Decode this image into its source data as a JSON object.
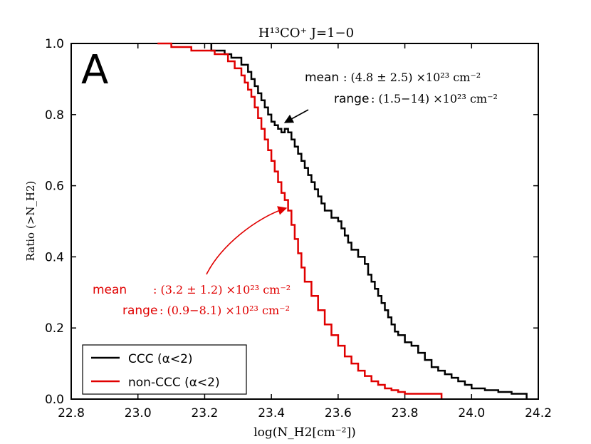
{
  "chart_data": {
    "type": "line",
    "panel_letter": "A",
    "title": "H¹³CO⁺ J=1−0",
    "xlabel": "log(N_H2[cm⁻²])",
    "ylabel": "Ratio (>N_H2)",
    "xlim": [
      22.8,
      24.2
    ],
    "ylim": [
      0.0,
      1.0
    ],
    "xticks": [
      22.8,
      23.0,
      23.2,
      23.4,
      23.6,
      23.8,
      24.0,
      24.2
    ],
    "yticks": [
      0.0,
      0.2,
      0.4,
      0.6,
      0.8,
      1.0
    ],
    "xtick_labels": [
      "22.8",
      "23.0",
      "23.2",
      "23.4",
      "23.6",
      "23.8",
      "24.0",
      "24.2"
    ],
    "ytick_labels": [
      "0.0",
      "0.2",
      "0.4",
      "0.6",
      "0.8",
      "1.0"
    ],
    "grid": false,
    "legend_position": "bottom-left",
    "series": [
      {
        "name": "CCC (α<2)",
        "color": "#000000",
        "x": [
          23.22,
          23.22,
          23.26,
          23.28,
          23.31,
          23.33,
          23.34,
          23.35,
          23.36,
          23.37,
          23.38,
          23.39,
          23.4,
          23.41,
          23.42,
          23.43,
          23.44,
          23.45,
          23.46,
          23.47,
          23.48,
          23.49,
          23.5,
          23.51,
          23.52,
          23.53,
          23.54,
          23.55,
          23.56,
          23.58,
          23.6,
          23.61,
          23.62,
          23.63,
          23.64,
          23.66,
          23.68,
          23.69,
          23.7,
          23.71,
          23.72,
          23.73,
          23.74,
          23.75,
          23.76,
          23.77,
          23.78,
          23.8,
          23.82,
          23.84,
          23.86,
          23.88,
          23.9,
          23.92,
          23.94,
          23.96,
          23.98,
          24.0,
          24.04,
          24.08,
          24.12,
          24.165
        ],
        "y": [
          1.0,
          0.98,
          0.97,
          0.96,
          0.94,
          0.92,
          0.9,
          0.88,
          0.86,
          0.84,
          0.82,
          0.8,
          0.78,
          0.77,
          0.76,
          0.75,
          0.76,
          0.75,
          0.73,
          0.71,
          0.69,
          0.67,
          0.65,
          0.63,
          0.61,
          0.59,
          0.57,
          0.55,
          0.53,
          0.51,
          0.5,
          0.48,
          0.46,
          0.44,
          0.42,
          0.4,
          0.38,
          0.35,
          0.33,
          0.31,
          0.29,
          0.27,
          0.25,
          0.23,
          0.21,
          0.19,
          0.18,
          0.16,
          0.15,
          0.13,
          0.11,
          0.09,
          0.08,
          0.07,
          0.06,
          0.05,
          0.04,
          0.03,
          0.025,
          0.02,
          0.015,
          0.0
        ]
      },
      {
        "name": "non-CCC (α<2)",
        "color": "#e00000",
        "x": [
          23.08,
          23.1,
          23.16,
          23.23,
          23.27,
          23.29,
          23.31,
          23.32,
          23.33,
          23.34,
          23.35,
          23.36,
          23.37,
          23.38,
          23.39,
          23.4,
          23.41,
          23.42,
          23.43,
          23.44,
          23.45,
          23.46,
          23.47,
          23.48,
          23.49,
          23.5,
          23.52,
          23.54,
          23.56,
          23.58,
          23.6,
          23.62,
          23.64,
          23.66,
          23.68,
          23.7,
          23.72,
          23.74,
          23.76,
          23.78,
          23.8,
          23.91
        ],
        "y": [
          1.0,
          0.99,
          0.98,
          0.97,
          0.95,
          0.93,
          0.91,
          0.89,
          0.87,
          0.85,
          0.82,
          0.79,
          0.76,
          0.73,
          0.7,
          0.67,
          0.64,
          0.61,
          0.58,
          0.56,
          0.53,
          0.49,
          0.45,
          0.41,
          0.37,
          0.33,
          0.29,
          0.25,
          0.21,
          0.18,
          0.15,
          0.12,
          0.1,
          0.08,
          0.065,
          0.05,
          0.04,
          0.03,
          0.025,
          0.02,
          0.015,
          0.0
        ]
      }
    ],
    "annotations": [
      {
        "label": "CCC",
        "color": "#000000",
        "mean_label": "mean",
        "mean_value": ": (4.8 ± 2.5) ×10²³ cm⁻²",
        "range_label": "range",
        "range_value": ": (1.5−14) ×10²³ cm⁻²",
        "points_to": [
          23.46,
          0.78
        ]
      },
      {
        "label": "non-CCC",
        "color": "#e00000",
        "mean_label": "mean",
        "mean_value": ": (3.2 ± 1.2) ×10²³ cm⁻²",
        "range_label": "range",
        "range_value": ": (0.9−8.1) ×10²³ cm⁻²",
        "points_to": [
          23.44,
          0.55
        ]
      }
    ]
  }
}
